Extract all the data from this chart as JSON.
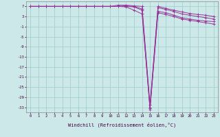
{
  "background_color": "#cce8e8",
  "grid_color": "#99cccc",
  "line_color": "#993399",
  "marker": "+",
  "xlabel": "Windchill (Refroidissement éolien,°C)",
  "xlim": [
    -0.5,
    23.5
  ],
  "ylim": [
    -35,
    9
  ],
  "yticks": [
    7,
    3,
    -1,
    -5,
    -9,
    -13,
    -17,
    -21,
    -25,
    -29,
    -33
  ],
  "xticks": [
    0,
    1,
    2,
    3,
    4,
    5,
    6,
    7,
    8,
    9,
    10,
    11,
    12,
    13,
    14,
    15,
    16,
    17,
    18,
    19,
    20,
    21,
    22,
    23
  ],
  "series": [
    [
      7.0,
      7.0,
      7.0,
      7.0,
      7.0,
      7.0,
      7.0,
      7.0,
      7.0,
      7.0,
      7.0,
      7.0,
      7.0,
      6.8,
      5.5,
      -34.0,
      5.0,
      4.5,
      3.5,
      2.5,
      2.0,
      1.5,
      1.2,
      1.0
    ],
    [
      7.0,
      7.0,
      7.0,
      7.0,
      7.0,
      7.0,
      7.0,
      7.0,
      7.0,
      7.0,
      7.0,
      7.0,
      6.8,
      5.5,
      4.0,
      -33.5,
      4.5,
      3.8,
      3.0,
      2.0,
      1.5,
      1.0,
      0.5,
      0.0
    ],
    [
      7.0,
      7.0,
      7.0,
      7.0,
      7.0,
      7.0,
      7.0,
      7.0,
      7.0,
      7.0,
      7.0,
      7.0,
      7.2,
      7.0,
      6.0,
      -33.0,
      6.5,
      5.8,
      5.0,
      4.0,
      3.5,
      3.0,
      2.5,
      2.0
    ],
    [
      7.0,
      7.0,
      7.0,
      7.0,
      7.0,
      7.0,
      7.0,
      7.0,
      7.0,
      7.0,
      7.0,
      7.5,
      7.5,
      7.2,
      7.0,
      -32.0,
      7.0,
      6.2,
      5.5,
      4.8,
      4.2,
      3.8,
      3.5,
      3.0
    ]
  ]
}
